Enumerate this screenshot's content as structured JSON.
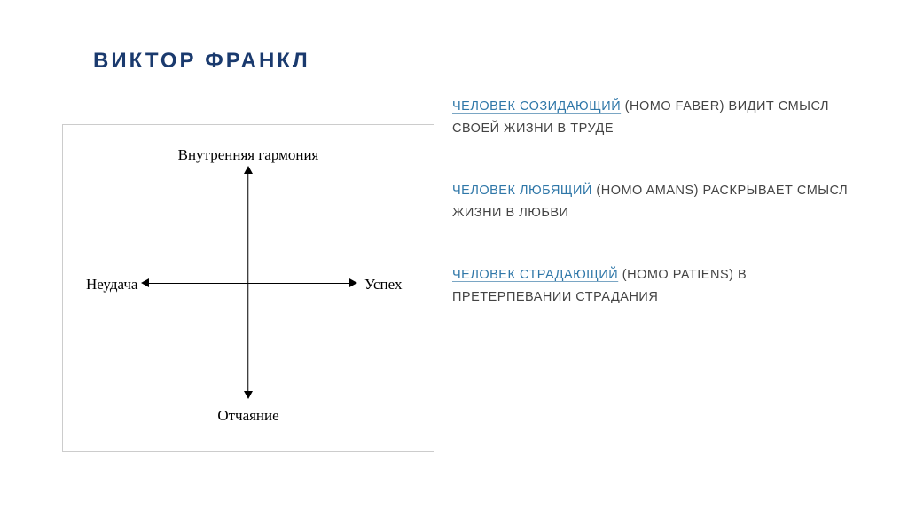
{
  "title": "ВИКТОР   ФРАНКЛ",
  "diagram": {
    "type": "quadrant",
    "axis_labels": {
      "top": "Внутренняя гармония",
      "bottom": "Отчаяние",
      "left": "Неудача",
      "right": "Успех"
    },
    "box_border_color": "#cccccc",
    "line_color": "#000000",
    "label_font_family": "Times New Roman, serif",
    "label_fontsize": 17,
    "label_color": "#000000",
    "background_color": "#ffffff"
  },
  "paragraphs": [
    {
      "lead": "ЧЕЛОВЕК СОЗИДАЮЩИЙ",
      "lead_underline": true,
      "rest": " (HOMO FABER) ВИДИТ СМЫСЛ СВОЕЙ ЖИЗНИ В ТРУДЕ"
    },
    {
      "lead": "ЧЕЛОВЕК ЛЮБЯЩИЙ",
      "lead_underline": false,
      "rest": " (HOMO AMANS) РАСКРЫВАЕТ СМЫСЛ ЖИЗНИ В ЛЮБВИ"
    },
    {
      "lead": "ЧЕЛОВЕК СТРАДАЮЩИЙ",
      "lead_underline": true,
      "rest": " (HOMO PATIENS) В ПРЕТЕРПЕВАНИИ СТРАДАНИЯ"
    }
  ],
  "colors": {
    "title_color": "#1a3a6e",
    "accent_color": "#2f77a8",
    "body_color": "#444444",
    "background": "#ffffff"
  },
  "typography": {
    "title_fontsize": 24,
    "title_weight": "bold",
    "title_letter_spacing": 3,
    "body_fontsize": 14.5,
    "body_line_height": 1.75
  }
}
